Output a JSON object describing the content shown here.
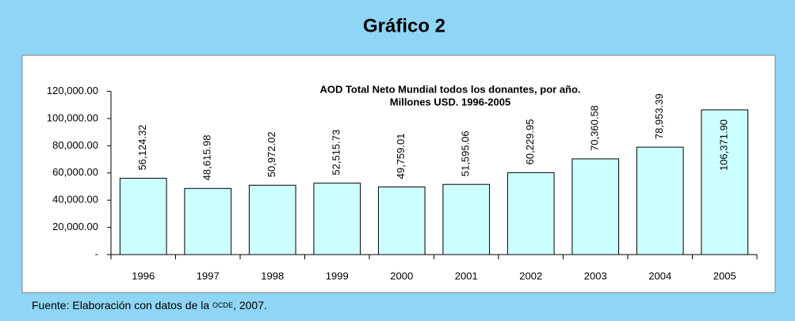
{
  "heading": "Gráfico 2",
  "chart_data": {
    "type": "bar",
    "title": [
      "AOD Total Neto Mundial  todos los donantes, por año.",
      "Millones USD. 1996-2005"
    ],
    "categories": [
      "1996",
      "1997",
      "1998",
      "1999",
      "2000",
      "2001",
      "2002",
      "2003",
      "2004",
      "2005"
    ],
    "values": [
      56124.32,
      48615.98,
      50972.02,
      52515.73,
      49759.01,
      51595.06,
      60229.95,
      70360.58,
      78953.39,
      106371.9
    ],
    "value_labels": [
      "56,124.32",
      "48,615.98",
      "50,972.02",
      "52,515.73",
      "49,759.01",
      "51,595.06",
      "60,229.95",
      "70,360.58",
      "78,953.39",
      "106,371.90"
    ],
    "color": "#ccffff",
    "ylim": [
      0,
      120000
    ],
    "yticks": [
      {
        "value": 0,
        "label": "-"
      },
      {
        "value": 20000,
        "label": "20,000.00"
      },
      {
        "value": 40000,
        "label": "40,000.00"
      },
      {
        "value": 60000,
        "label": "60,000.00"
      },
      {
        "value": 80000,
        "label": "80,000.00"
      },
      {
        "value": 100000,
        "label": "100,000.00"
      },
      {
        "value": 120000,
        "label": "120,000.00"
      }
    ],
    "grid": false
  },
  "footer": {
    "text": "Fuente: Elaboración con datos de la ",
    "abbr": "OCDE",
    "text_after": ", 2007."
  }
}
